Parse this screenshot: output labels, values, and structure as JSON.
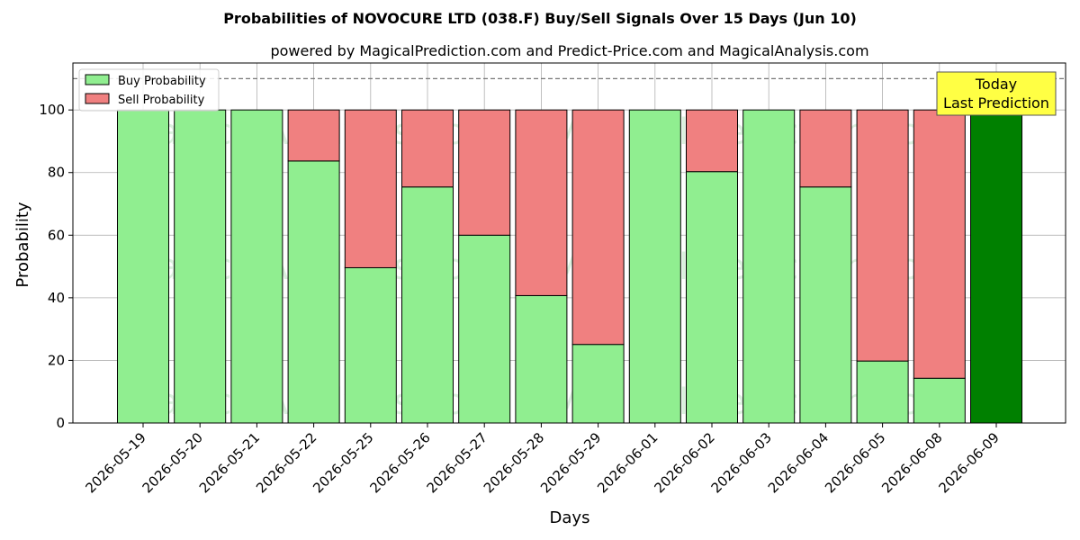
{
  "chart_data": {
    "type": "bar",
    "stacked": true,
    "title": "Probabilities of NOVOCURE LTD (038.F) Buy/Sell Signals Over 15 Days (Jun 10)",
    "subtitle": "powered by MagicalPrediction.com and Predict-Price.com and MagicalAnalysis.com",
    "xlabel": "Days",
    "ylabel": "Probability",
    "ylim": [
      0,
      115
    ],
    "yticks": [
      0,
      20,
      40,
      60,
      80,
      100
    ],
    "grid": true,
    "legend_position": "top-left",
    "reference_line": 110,
    "categories": [
      "2026-05-19",
      "2026-05-20",
      "2026-05-21",
      "2026-05-22",
      "2026-05-25",
      "2026-05-26",
      "2026-05-27",
      "2026-05-28",
      "2026-05-29",
      "2026-06-01",
      "2026-06-02",
      "2026-06-03",
      "2026-06-04",
      "2026-06-05",
      "2026-06-08",
      "2026-06-09"
    ],
    "series": [
      {
        "name": "Buy Probability",
        "color": "#90ee90",
        "values": [
          100,
          100,
          100,
          83.7,
          49.6,
          75.4,
          60,
          40.7,
          25.1,
          100,
          80.3,
          100,
          75.4,
          19.8,
          14.3,
          100
        ]
      },
      {
        "name": "Sell Probability",
        "color": "#f08080",
        "values": [
          0,
          0,
          0,
          16.3,
          50.4,
          24.6,
          40,
          59.3,
          74.9,
          0,
          19.7,
          0,
          24.6,
          80.2,
          85.7,
          0
        ]
      }
    ],
    "highlight": {
      "index": 15,
      "color": "#008000"
    },
    "annotation": {
      "line1": "Today",
      "line2": "Last Prediction",
      "background": "#ffff44"
    },
    "watermarks": [
      "MagicalAnalysis.com",
      "MagicalPrediction.com"
    ]
  }
}
